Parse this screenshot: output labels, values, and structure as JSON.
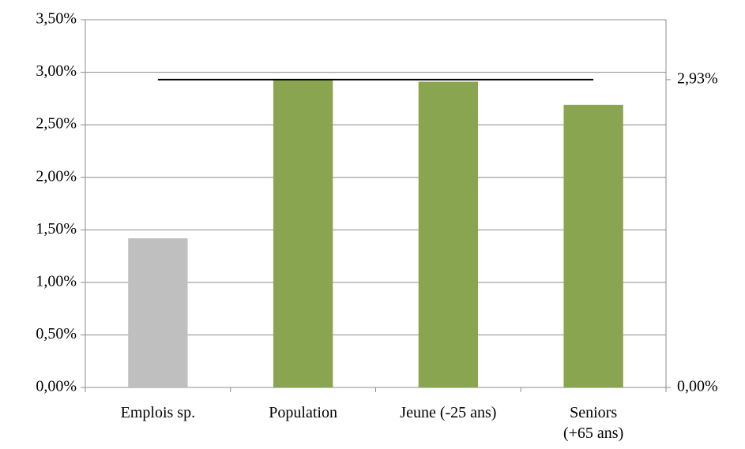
{
  "chart_data": {
    "type": "bar",
    "categories": [
      "Emplois sp.",
      "Population",
      "Jeune (-25 ans)",
      "Seniors\n(+65 ans)"
    ],
    "values": [
      1.42,
      2.93,
      2.91,
      2.69
    ],
    "colors": [
      "#bfbfbf",
      "#8aa54f",
      "#8aa54f",
      "#8aa54f"
    ],
    "ylim": [
      0,
      3.5
    ],
    "yticks": [
      {
        "value": 0,
        "label": "0,00%"
      },
      {
        "value": 0.5,
        "label": "0,50%"
      },
      {
        "value": 1,
        "label": "1,00%"
      },
      {
        "value": 1.5,
        "label": "1,50%"
      },
      {
        "value": 2,
        "label": "2,00%"
      },
      {
        "value": 2.5,
        "label": "2,50%"
      },
      {
        "value": 3,
        "label": "3,00%"
      },
      {
        "value": 3.5,
        "label": "3,50%"
      }
    ],
    "y2lim": [
      0,
      3.5
    ],
    "y2ticks": [
      {
        "value": 0,
        "label": "0,00%"
      },
      {
        "value": 2.93,
        "label": "2,93%"
      }
    ],
    "grid": true,
    "series": [
      {
        "color": "#000000",
        "axis": "y2",
        "values": [
          2.93,
          2.93,
          2.93,
          2.93
        ]
      }
    ]
  }
}
